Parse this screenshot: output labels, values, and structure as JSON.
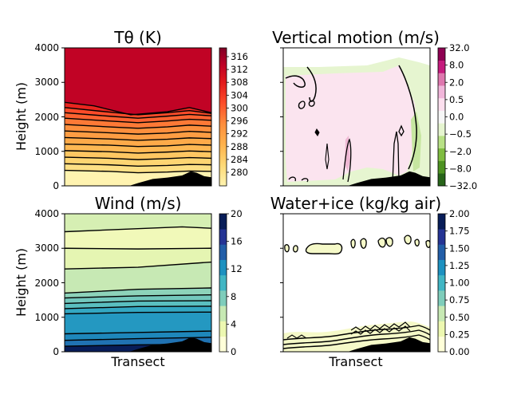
{
  "chart_data": [
    {
      "type": "filled-contour",
      "title": "Tθ (K)",
      "ylabel": "Height (m)",
      "xlabel": "",
      "ylim": [
        0,
        4000
      ],
      "yticks": [
        "0",
        "1000",
        "2000",
        "3000",
        "4000"
      ],
      "colorbar": {
        "ticks": [
          "280",
          "284",
          "288",
          "292",
          "296",
          "300",
          "304",
          "308",
          "312",
          "316"
        ],
        "range": [
          280,
          318
        ],
        "colors": [
          "#fff3b0",
          "#fed976",
          "#feb24c",
          "#fd8d3c",
          "#fc4e2a",
          "#e31a1c",
          "#bd0026",
          "#800026"
        ]
      },
      "layers": [
        {
          "value": 280,
          "tops": [
            [
              0.0,
              0
            ],
            [
              1.0,
              0
            ]
          ]
        },
        {
          "value": 284,
          "tops": [
            [
              0.0,
              450
            ],
            [
              0.3,
              420
            ],
            [
              0.5,
              380
            ],
            [
              0.7,
              400
            ],
            [
              0.85,
              430
            ],
            [
              1.0,
              420
            ]
          ]
        },
        {
          "value": 286,
          "tops": [
            [
              0.0,
              640
            ],
            [
              0.3,
              610
            ],
            [
              0.5,
              570
            ],
            [
              0.7,
              590
            ],
            [
              0.85,
              620
            ],
            [
              1.0,
              610
            ]
          ]
        },
        {
          "value": 288,
          "tops": [
            [
              0.0,
              830
            ],
            [
              0.3,
              800
            ],
            [
              0.5,
              760
            ],
            [
              0.7,
              790
            ],
            [
              0.85,
              820
            ],
            [
              1.0,
              800
            ]
          ]
        },
        {
          "value": 290,
          "tops": [
            [
              0.0,
              1020
            ],
            [
              0.3,
              990
            ],
            [
              0.5,
              950
            ],
            [
              0.7,
              980
            ],
            [
              0.85,
              1010
            ],
            [
              1.0,
              990
            ]
          ]
        },
        {
          "value": 292,
          "tops": [
            [
              0.0,
              1210
            ],
            [
              0.3,
              1180
            ],
            [
              0.5,
              1140
            ],
            [
              0.7,
              1160
            ],
            [
              0.85,
              1200
            ],
            [
              1.0,
              1180
            ]
          ]
        },
        {
          "value": 294,
          "tops": [
            [
              0.0,
              1400
            ],
            [
              0.3,
              1360
            ],
            [
              0.5,
              1320
            ],
            [
              0.7,
              1350
            ],
            [
              0.85,
              1390
            ],
            [
              1.0,
              1370
            ]
          ]
        },
        {
          "value": 296,
          "tops": [
            [
              0.0,
              1590
            ],
            [
              0.3,
              1540
            ],
            [
              0.5,
              1500
            ],
            [
              0.7,
              1530
            ],
            [
              0.85,
              1580
            ],
            [
              1.0,
              1550
            ]
          ]
        },
        {
          "value": 298,
          "tops": [
            [
              0.0,
              1780
            ],
            [
              0.3,
              1710
            ],
            [
              0.5,
              1670
            ],
            [
              0.7,
              1710
            ],
            [
              0.85,
              1760
            ],
            [
              1.0,
              1730
            ]
          ]
        },
        {
          "value": 300,
          "tops": [
            [
              0.0,
              1960
            ],
            [
              0.3,
              1880
            ],
            [
              0.5,
              1830
            ],
            [
              0.7,
              1880
            ],
            [
              0.85,
              1930
            ],
            [
              1.0,
              1900
            ]
          ]
        },
        {
          "value": 302,
          "tops": [
            [
              0.0,
              2120
            ],
            [
              0.3,
              2020
            ],
            [
              0.5,
              1960
            ],
            [
              0.7,
              2020
            ],
            [
              0.85,
              2070
            ],
            [
              1.0,
              2030
            ]
          ]
        },
        {
          "value": 306,
          "tops": [
            [
              0.0,
              2270
            ],
            [
              0.3,
              2140
            ],
            [
              0.5,
              2060
            ],
            [
              0.7,
              2120
            ],
            [
              0.85,
              2180
            ],
            [
              1.0,
              2100
            ]
          ]
        },
        {
          "value": 312,
          "tops": [
            [
              0.0,
              2420
            ],
            [
              0.2,
              2320
            ],
            [
              0.45,
              2060
            ],
            [
              0.7,
              2150
            ],
            [
              0.85,
              2270
            ],
            [
              1.0,
              2120
            ]
          ]
        },
        {
          "value": 318,
          "tops": [
            [
              0.0,
              4000
            ],
            [
              1.0,
              4000
            ]
          ]
        }
      ]
    },
    {
      "type": "filled-contour",
      "title": "Vertical motion (m/s)",
      "ylabel": "",
      "xlabel": "",
      "ylim": [
        0,
        4000
      ],
      "colorbar": {
        "ticks": [
          "32.0",
          "8.0",
          "2.0",
          "0.5",
          "0.0",
          "−0.5",
          "−2.0",
          "−8.0",
          "−32.0"
        ],
        "colors": [
          "#8e0152",
          "#c51b7d",
          "#de77ae",
          "#f1b6da",
          "#fde0ef",
          "#f7f7f7",
          "#e6f5d0",
          "#b8e186",
          "#7fbc41",
          "#4d9221",
          "#276419"
        ]
      },
      "fields": {
        "positive": "#e6f5d0",
        "negative": "#fbe4ef",
        "strong_positive": "#c6e6a0",
        "strong_negative": "#efb8d4"
      }
    },
    {
      "type": "filled-contour",
      "title": "Wind (m/s)",
      "ylabel": "Height (m)",
      "xlabel": "Transect",
      "ylim": [
        0,
        4000
      ],
      "yticks": [
        "0",
        "1000",
        "2000",
        "3000",
        "4000"
      ],
      "colorbar": {
        "ticks": [
          "0",
          "4",
          "8",
          "12",
          "16",
          "20"
        ],
        "range": [
          0,
          20
        ],
        "colors": [
          "#ffffd9",
          "#edf8b1",
          "#c7e9b4",
          "#7fcdbb",
          "#41b6c4",
          "#1d91c0",
          "#225ea8",
          "#253494",
          "#081d58"
        ]
      },
      "layers": [
        {
          "value": 20,
          "tops": [
            [
              0.0,
              0
            ],
            [
              1.0,
              0
            ]
          ]
        },
        {
          "value": 14,
          "tops": [
            [
              0.0,
              160
            ],
            [
              0.5,
              200
            ],
            [
              1.0,
              220
            ]
          ]
        },
        {
          "value": 13,
          "tops": [
            [
              0.0,
              330
            ],
            [
              0.5,
              380
            ],
            [
              1.0,
              420
            ]
          ]
        },
        {
          "value": 12,
          "tops": [
            [
              0.0,
              520
            ],
            [
              0.5,
              560
            ],
            [
              1.0,
              600
            ]
          ]
        },
        {
          "value": 11,
          "tops": [
            [
              0.0,
              1100
            ],
            [
              0.5,
              1140
            ],
            [
              1.0,
              1150
            ]
          ]
        },
        {
          "value": 9,
          "tops": [
            [
              0.0,
              1250
            ],
            [
              0.5,
              1310
            ],
            [
              1.0,
              1320
            ]
          ]
        },
        {
          "value": 8,
          "tops": [
            [
              0.0,
              1400
            ],
            [
              0.5,
              1470
            ],
            [
              1.0,
              1480
            ]
          ]
        },
        {
          "value": 7,
          "tops": [
            [
              0.0,
              1560
            ],
            [
              0.5,
              1620
            ],
            [
              1.0,
              1650
            ]
          ]
        },
        {
          "value": 5,
          "tops": [
            [
              0.0,
              1700
            ],
            [
              0.5,
              1810
            ],
            [
              1.0,
              1850
            ]
          ]
        },
        {
          "value": 3,
          "tops": [
            [
              0.0,
              2400
            ],
            [
              0.5,
              2450
            ],
            [
              1.0,
              2600
            ]
          ]
        },
        {
          "value": 2,
          "tops": [
            [
              0.0,
              3000
            ],
            [
              0.5,
              2980
            ],
            [
              1.0,
              3000
            ]
          ]
        },
        {
          "value": 4,
          "tops": [
            [
              0.0,
              3480
            ],
            [
              0.4,
              3550
            ],
            [
              0.8,
              3620
            ],
            [
              1.0,
              3580
            ]
          ]
        },
        {
          "value": 0,
          "tops": [
            [
              0.0,
              4000
            ],
            [
              1.0,
              4000
            ]
          ]
        }
      ]
    },
    {
      "type": "filled-contour",
      "title": "Water+ice (kg/kg air)",
      "ylabel": "",
      "xlabel": "Transect",
      "ylim": [
        0,
        4000
      ],
      "colorbar": {
        "ticks": [
          "0.00",
          "0.25",
          "0.50",
          "0.75",
          "1.00",
          "1.25",
          "1.50",
          "1.75",
          "2.00"
        ],
        "range": [
          0,
          2
        ],
        "colors": [
          "#ffffd9",
          "#edf8b1",
          "#c7e9b4",
          "#7fcdbb",
          "#41b6c4",
          "#1d91c0",
          "#225ea8",
          "#253494",
          "#081d58"
        ]
      },
      "cloud_fill": "#f5f9c8"
    }
  ],
  "terrain": {
    "color": "#000000",
    "profile": [
      [
        0.44,
        0
      ],
      [
        0.5,
        80
      ],
      [
        0.6,
        200
      ],
      [
        0.7,
        240
      ],
      [
        0.8,
        300
      ],
      [
        0.86,
        420
      ],
      [
        0.9,
        380
      ],
      [
        0.95,
        280
      ],
      [
        1.0,
        250
      ]
    ]
  }
}
